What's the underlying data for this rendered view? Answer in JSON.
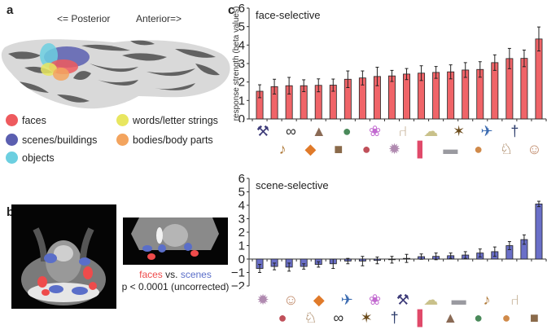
{
  "panels": {
    "a": "a",
    "b": "b",
    "c": "c"
  },
  "panel_a": {
    "posterior_label": "<= Posterior",
    "anterior_label": "Anterior=>",
    "legend": [
      {
        "label": "faces",
        "color": "#ee5a5e"
      },
      {
        "label": "scenes/buildings",
        "color": "#5b5fb0"
      },
      {
        "label": "objects",
        "color": "#6ccfe0"
      },
      {
        "label": "words/letter strings",
        "color": "#e8e660"
      },
      {
        "label": "bodies/body parts",
        "color": "#f3a45e"
      }
    ]
  },
  "panel_b": {
    "contrast_faces": "faces",
    "contrast_vs": " vs. ",
    "contrast_scenes": "scenes",
    "threshold": "p < 0.0001 (uncorrected)",
    "faces_color": "#ee4b4b",
    "scenes_color": "#5a6ec9"
  },
  "chart_data": [
    {
      "type": "bar",
      "title": "face-selective",
      "ylabel": "response strength (beta values)",
      "ylim": [
        0,
        6
      ],
      "yticks": [
        0,
        1,
        2,
        3,
        4,
        5,
        6
      ],
      "bar_color": "#f06468",
      "categories": [
        "brush",
        "glasses",
        "rock",
        "coins",
        "flower",
        "chair",
        "cauliflower",
        "wasp",
        "bird",
        "jeans-person",
        "trumpet",
        "clownfish",
        "room",
        "salami",
        "spider",
        "red-cloth",
        "car",
        "pizza",
        "horse",
        "face"
      ],
      "values": [
        1.5,
        1.75,
        1.8,
        1.8,
        1.82,
        1.83,
        2.15,
        2.22,
        2.3,
        2.33,
        2.43,
        2.48,
        2.52,
        2.55,
        2.65,
        2.68,
        3.05,
        3.27,
        3.28,
        4.33
      ],
      "errors": [
        0.35,
        0.4,
        0.45,
        0.32,
        0.35,
        0.33,
        0.45,
        0.38,
        0.5,
        0.3,
        0.3,
        0.4,
        0.32,
        0.38,
        0.4,
        0.42,
        0.42,
        0.55,
        0.45,
        0.65
      ]
    },
    {
      "type": "bar",
      "title": "scene-selective",
      "ylabel": "",
      "ylim": [
        -2,
        6
      ],
      "yticks": [
        -2,
        -1,
        0,
        1,
        2,
        3,
        4,
        5,
        6
      ],
      "bar_color": "#6a6fc8",
      "categories": [
        "spider",
        "face",
        "clownfish",
        "bird",
        "flower",
        "brush",
        "cauliflower",
        "car",
        "trumpet",
        "chair",
        "salami",
        "horse",
        "glasses",
        "wasp",
        "jeans-person",
        "red-cloth",
        "rock",
        "coins",
        "pizza",
        "room"
      ],
      "values": [
        -0.7,
        -0.55,
        -0.6,
        -0.55,
        -0.4,
        -0.35,
        -0.15,
        -0.15,
        -0.1,
        -0.05,
        0.05,
        0.18,
        0.2,
        0.25,
        0.3,
        0.45,
        0.55,
        1.0,
        1.45,
        4.1
      ],
      "errors": [
        0.3,
        0.25,
        0.3,
        0.2,
        0.2,
        0.35,
        0.2,
        0.35,
        0.25,
        0.25,
        0.3,
        0.2,
        0.25,
        0.2,
        0.25,
        0.3,
        0.35,
        0.3,
        0.35,
        0.2
      ]
    }
  ]
}
